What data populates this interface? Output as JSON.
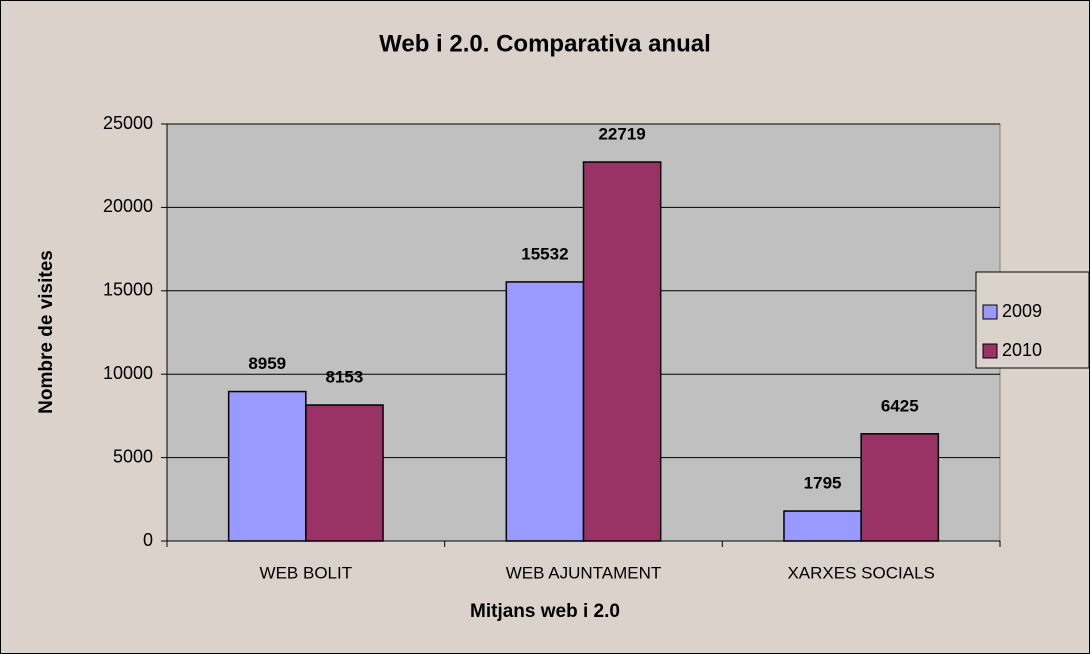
{
  "chart_data": {
    "type": "bar",
    "title": "Web i 2.0. Comparativa anual",
    "x_label": "Mitjans web i 2.0",
    "y_label": "Nombre de visites",
    "categories": [
      "WEB BOLIT",
      "WEB AJUNTAMENT",
      "XARXES SOCIALS"
    ],
    "series": [
      {
        "name": "2009",
        "color": "#9999ff",
        "values": [
          8959,
          15532,
          1795
        ]
      },
      {
        "name": "2010",
        "color": "#993366",
        "values": [
          8153,
          22719,
          6425
        ]
      }
    ],
    "ylim": [
      0,
      25000
    ],
    "yticks": [
      0,
      5000,
      10000,
      15000,
      20000,
      25000
    ],
    "grid": true,
    "legend": "right"
  }
}
